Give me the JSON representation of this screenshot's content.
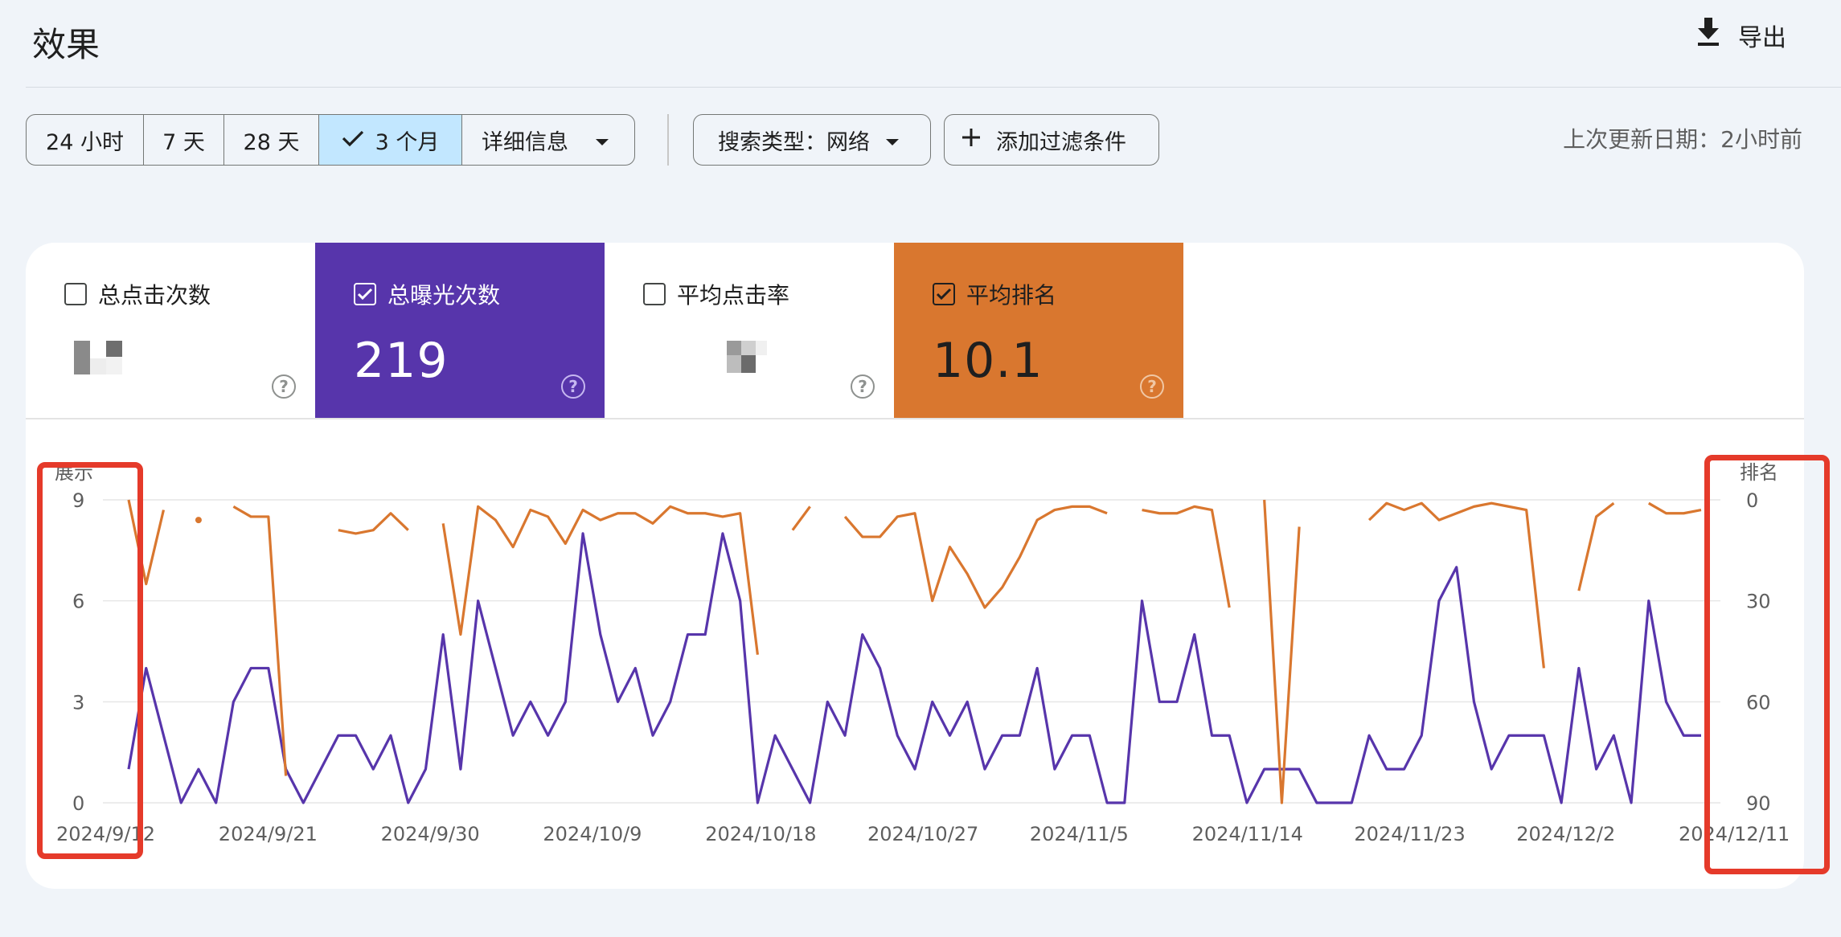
{
  "header": {
    "title": "效果",
    "export_label": "导出"
  },
  "date_range": {
    "options": [
      {
        "label": "24 小时",
        "active": false
      },
      {
        "label": "7 天",
        "active": false
      },
      {
        "label": "28 天",
        "active": false
      },
      {
        "label": "3 个月",
        "active": true
      }
    ],
    "more_label": "详细信息"
  },
  "filters": {
    "search_type": "搜索类型：网络",
    "add_filter": "添加过滤条件"
  },
  "updated": "上次更新日期：2小时前",
  "metrics": [
    {
      "label": "总点击次数",
      "value": "",
      "checked": false,
      "style": "white"
    },
    {
      "label": "总曝光次数",
      "value": "219",
      "checked": true,
      "style": "blue"
    },
    {
      "label": "平均点击率",
      "value": "",
      "checked": false,
      "style": "white"
    },
    {
      "label": "平均排名",
      "value": "10.1",
      "checked": true,
      "style": "orange"
    }
  ],
  "colors": {
    "impressions": "#5735ab",
    "position": "#d9772f",
    "highlight": "#e53a2a"
  },
  "chart_data": {
    "type": "line",
    "left_axis_label": "展示",
    "right_axis_label": "排名",
    "left_ticks": [
      "9",
      "6",
      "3",
      "0"
    ],
    "right_ticks": [
      "0",
      "30",
      "60",
      "90"
    ],
    "left_ylim": [
      0,
      9
    ],
    "right_ylim": [
      0,
      90
    ],
    "right_axis_inverted": true,
    "x_labels": [
      "2024/9/12",
      "2024/9/21",
      "2024/9/30",
      "2024/10/9",
      "2024/10/18",
      "2024/10/27",
      "2024/11/5",
      "2024/11/14",
      "2024/11/23",
      "2024/12/2",
      "2024/12/11"
    ],
    "grid": true,
    "series": [
      {
        "name": "展示",
        "axis": "left",
        "values": [
          1,
          4,
          2,
          0,
          1,
          0,
          3,
          4,
          4,
          1,
          0,
          1,
          2,
          2,
          1,
          2,
          0,
          1,
          5,
          1,
          6,
          4,
          2,
          3,
          2,
          3,
          8,
          5,
          3,
          4,
          2,
          3,
          5,
          5,
          8,
          6,
          0,
          2,
          1,
          0,
          3,
          2,
          5,
          4,
          2,
          1,
          3,
          2,
          3,
          1,
          2,
          2,
          4,
          1,
          2,
          2,
          0,
          0,
          6,
          3,
          3,
          5,
          2,
          2,
          0,
          1,
          1,
          1,
          0,
          0,
          0,
          2,
          1,
          1,
          2,
          6,
          7,
          3,
          1,
          2,
          2,
          2,
          0,
          4,
          1,
          2,
          0,
          6,
          3,
          2,
          2
        ]
      },
      {
        "name": "排名",
        "axis": "right",
        "values": [
          0,
          25,
          3,
          null,
          6,
          null,
          2,
          5,
          5,
          82,
          null,
          null,
          9,
          10,
          9,
          4,
          9,
          null,
          7,
          40,
          2,
          6,
          14,
          3,
          5,
          13,
          3,
          6,
          4,
          4,
          7,
          2,
          4,
          4,
          5,
          4,
          46,
          null,
          9,
          2,
          null,
          5,
          11,
          11,
          5,
          4,
          30,
          14,
          22,
          32,
          26,
          17,
          6,
          3,
          2,
          2,
          4,
          null,
          3,
          4,
          4,
          2,
          3,
          32,
          null,
          0,
          90,
          8,
          null,
          null,
          null,
          6,
          1,
          3,
          1,
          6,
          4,
          2,
          1,
          2,
          3,
          50,
          null,
          27,
          5,
          1,
          null,
          1,
          4,
          4,
          3
        ]
      }
    ]
  }
}
